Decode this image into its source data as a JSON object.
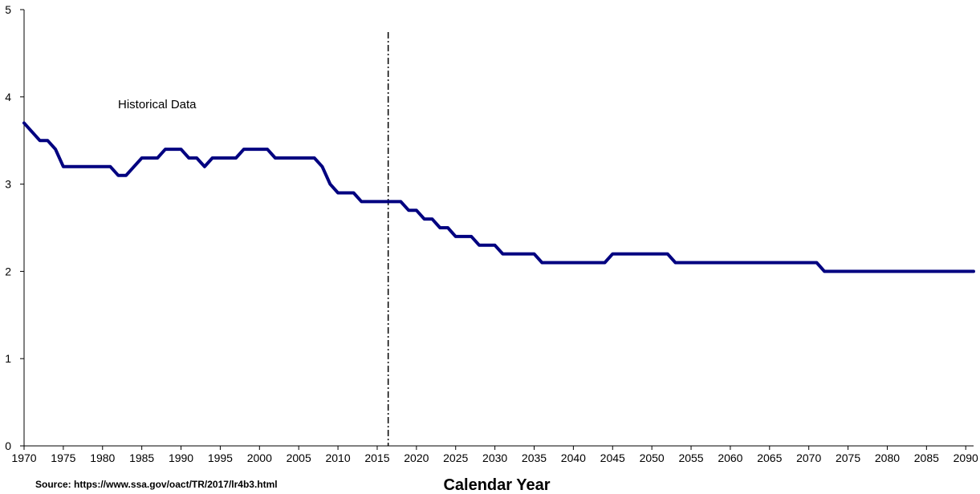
{
  "chart_data": {
    "type": "line",
    "title": "",
    "xlabel": "Calendar Year",
    "ylabel": "",
    "xlim": [
      1970,
      2091
    ],
    "ylim": [
      0,
      5
    ],
    "yticks": [
      0,
      1,
      2,
      3,
      4,
      5
    ],
    "xticks": [
      1970,
      1975,
      1980,
      1985,
      1990,
      1995,
      2000,
      2005,
      2010,
      2015,
      2020,
      2025,
      2030,
      2035,
      2040,
      2045,
      2050,
      2055,
      2060,
      2065,
      2070,
      2075,
      2080,
      2085,
      2090
    ],
    "grid": false,
    "legend": "none",
    "line_color": "#000080",
    "divider": {
      "x": 2016.4,
      "style": "dash-dot"
    },
    "annotation": "Historical Data",
    "source": "Source: https://www.ssa.gov/oact/TR/2017/lr4b3.html",
    "series": [
      {
        "x": [
          1970,
          1971,
          1972,
          1973,
          1974,
          1975,
          1976,
          1977,
          1978,
          1979,
          1980,
          1981,
          1982,
          1983,
          1984,
          1985,
          1986,
          1987,
          1988,
          1989,
          1990,
          1991,
          1992,
          1993,
          1994,
          1995,
          1996,
          1997,
          1998,
          1999,
          2000,
          2001,
          2002,
          2003,
          2004,
          2005,
          2006,
          2007,
          2008,
          2009,
          2010,
          2011,
          2012,
          2013,
          2014,
          2015,
          2016,
          2017,
          2018,
          2019,
          2020,
          2021,
          2022,
          2023,
          2024,
          2025,
          2026,
          2027,
          2028,
          2029,
          2030,
          2031,
          2032,
          2033,
          2034,
          2035,
          2036,
          2037,
          2038,
          2039,
          2040,
          2041,
          2042,
          2043,
          2044,
          2045,
          2046,
          2047,
          2048,
          2049,
          2050,
          2051,
          2052,
          2053,
          2054,
          2055,
          2056,
          2057,
          2058,
          2059,
          2060,
          2061,
          2062,
          2063,
          2064,
          2065,
          2066,
          2067,
          2068,
          2069,
          2070,
          2071,
          2072,
          2073,
          2074,
          2075,
          2076,
          2077,
          2078,
          2079,
          2080,
          2081,
          2082,
          2083,
          2084,
          2085,
          2086,
          2087,
          2088,
          2089,
          2090,
          2091
        ],
        "values": [
          3.7,
          3.6,
          3.5,
          3.5,
          3.4,
          3.2,
          3.2,
          3.2,
          3.2,
          3.2,
          3.2,
          3.2,
          3.1,
          3.1,
          3.2,
          3.3,
          3.3,
          3.3,
          3.4,
          3.4,
          3.4,
          3.3,
          3.3,
          3.2,
          3.3,
          3.3,
          3.3,
          3.3,
          3.4,
          3.4,
          3.4,
          3.4,
          3.3,
          3.3,
          3.3,
          3.3,
          3.3,
          3.3,
          3.2,
          3.0,
          2.9,
          2.9,
          2.9,
          2.8,
          2.8,
          2.8,
          2.8,
          2.8,
          2.8,
          2.7,
          2.7,
          2.6,
          2.6,
          2.5,
          2.5,
          2.4,
          2.4,
          2.4,
          2.3,
          2.3,
          2.3,
          2.2,
          2.2,
          2.2,
          2.2,
          2.2,
          2.1,
          2.1,
          2.1,
          2.1,
          2.1,
          2.1,
          2.1,
          2.1,
          2.1,
          2.2,
          2.2,
          2.2,
          2.2,
          2.2,
          2.2,
          2.2,
          2.2,
          2.1,
          2.1,
          2.1,
          2.1,
          2.1,
          2.1,
          2.1,
          2.1,
          2.1,
          2.1,
          2.1,
          2.1,
          2.1,
          2.1,
          2.1,
          2.1,
          2.1,
          2.1,
          2.1,
          2.0,
          2.0,
          2.0,
          2.0,
          2.0,
          2.0,
          2.0,
          2.0,
          2.0,
          2.0,
          2.0,
          2.0,
          2.0,
          2.0,
          2.0,
          2.0,
          2.0,
          2.0,
          2.0,
          2.0
        ]
      }
    ]
  }
}
